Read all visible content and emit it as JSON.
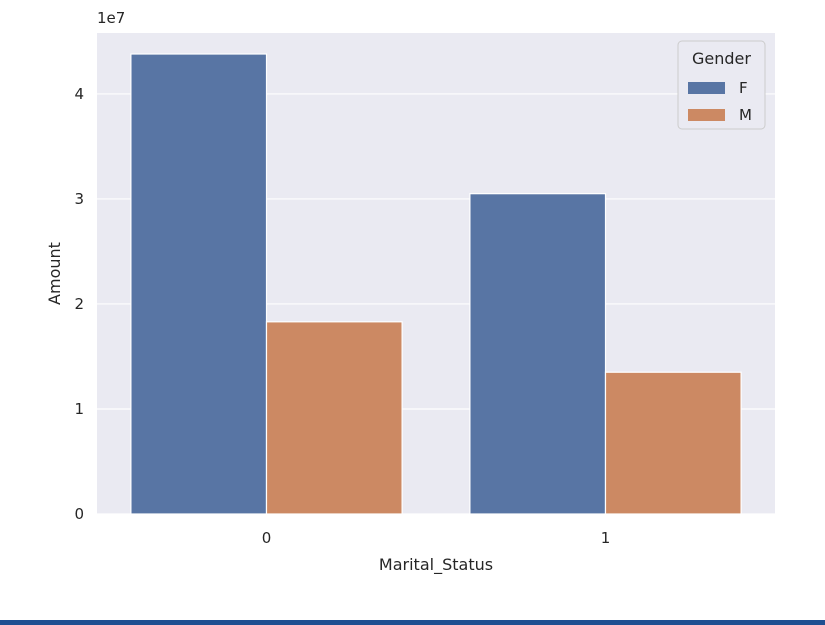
{
  "chart_data": {
    "type": "bar",
    "categories": [
      "0",
      "1"
    ],
    "series": [
      {
        "name": "F",
        "values": [
          43800000,
          30500000
        ],
        "color": "#5875a4"
      },
      {
        "name": "M",
        "values": [
          18300000,
          13500000
        ],
        "color": "#cc8963"
      }
    ],
    "xlabel": "Marital_Status",
    "ylabel": "Amount",
    "ylim": [
      0,
      45800000
    ],
    "yticks": [
      0,
      10000000,
      20000000,
      30000000,
      40000000
    ],
    "ytick_labels": [
      "0",
      "1",
      "2",
      "3",
      "4"
    ],
    "offset_text": "1e7",
    "legend": {
      "title": "Gender",
      "placement": "top-right"
    },
    "grid": true,
    "plot_background": "#eaeaf2"
  },
  "colors": {
    "bottom_bar": "#1e4f91"
  }
}
